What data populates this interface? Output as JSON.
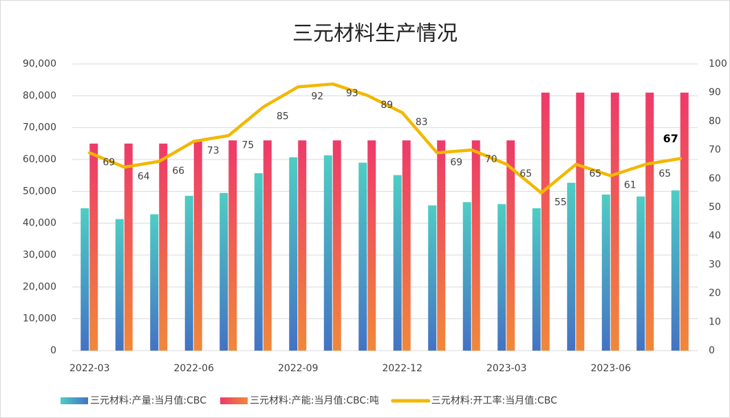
{
  "chart_data": {
    "type": "bar_line",
    "title": "三元材料生产情况",
    "categories": [
      "2022-03",
      null,
      null,
      "2022-06",
      null,
      null,
      "2022-09",
      null,
      null,
      "2022-12",
      null,
      null,
      "2023-03",
      null,
      null,
      "2023-06",
      null,
      null
    ],
    "series": [
      {
        "name": "三元材料:产量:当月值:CBC",
        "color": "#4472c4",
        "values": [
          44700,
          41300,
          42800,
          48600,
          49500,
          55700,
          60700,
          61300,
          59000,
          55100,
          45600,
          46600,
          46000,
          44700,
          52700,
          49000,
          48400,
          50300
        ]
      },
      {
        "name": "三元材料:产能:当月值:CBC:吨",
        "color": "#ee3a6a",
        "values": [
          65000,
          65000,
          65000,
          66000,
          66000,
          66000,
          66000,
          66000,
          66000,
          66000,
          66000,
          66000,
          66000,
          81000,
          81000,
          81000,
          81000,
          81000
        ]
      },
      {
        "name": "三元材料:开工率:当月值:CBC",
        "color": "#f2b800",
        "axis": "y2",
        "type": "line",
        "values": [
          69,
          64,
          66,
          73,
          75,
          85,
          92,
          93,
          89,
          83,
          69,
          70,
          65,
          55,
          65,
          61,
          65,
          67
        ]
      }
    ],
    "ylim": [
      0,
      90000
    ],
    "yticks": [
      0,
      {
        "value": 10000,
        "label": "10,000"
      },
      {
        "value": 20000,
        "label": "20,000"
      },
      {
        "value": 30000,
        "label": "30,000"
      },
      {
        "value": 40000,
        "label": "40,000"
      },
      {
        "value": 50000,
        "label": "50,000"
      },
      {
        "value": 60000,
        "label": "60,000"
      },
      {
        "value": 70000,
        "label": "70,000"
      },
      {
        "value": 80000,
        "label": "80,000"
      },
      {
        "value": 90000,
        "label": "90,000"
      }
    ],
    "y2lim": [
      0,
      100
    ],
    "y2ticks": [
      0,
      10,
      20,
      30,
      40,
      50,
      60,
      70,
      80,
      90,
      100
    ],
    "grid": true,
    "legend": "bottom"
  }
}
